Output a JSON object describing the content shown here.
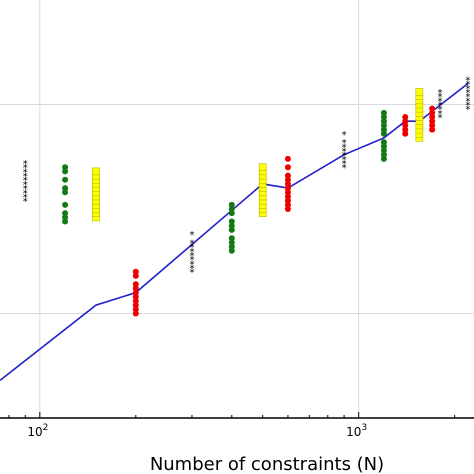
{
  "chart_data": {
    "type": "scatter",
    "title": "",
    "xlabel": "Number of constraints (N)",
    "ylabel": "",
    "x_scale": "log",
    "xlim": [
      75,
      2300
    ],
    "ylim": [
      0,
      1
    ],
    "y_normalized_view": true,
    "grid": true,
    "x_tick_labels": [
      {
        "value": 100,
        "label": "10",
        "exp": "2"
      },
      {
        "value": 1000,
        "label": "10",
        "exp": "3"
      }
    ],
    "series": [
      {
        "marker": "star",
        "color": "#000000",
        "points": [
          {
            "x": 90,
            "y": [
              0.52,
              0.53,
              0.54,
              0.55,
              0.56,
              0.57,
              0.58,
              0.59,
              0.6,
              0.61
            ]
          },
          {
            "x": 300,
            "y": [
              0.35,
              0.36,
              0.37,
              0.38,
              0.39,
              0.4,
              0.41,
              0.42,
              0.44
            ]
          },
          {
            "x": 900,
            "y": [
              0.6,
              0.61,
              0.62,
              0.63,
              0.64,
              0.65,
              0.66,
              0.68
            ]
          },
          {
            "x": 1800,
            "y": [
              0.72,
              0.73,
              0.74,
              0.75,
              0.76,
              0.77,
              0.78
            ]
          },
          {
            "x": 2200,
            "y": [
              0.74,
              0.75,
              0.76,
              0.77,
              0.78,
              0.79,
              0.8,
              0.81
            ]
          }
        ]
      },
      {
        "marker": "circle",
        "color": "#147814",
        "points": [
          {
            "x": 120,
            "y": [
              0.47,
              0.48,
              0.49,
              0.51,
              0.54,
              0.55,
              0.57,
              0.59,
              0.6
            ]
          },
          {
            "x": 400,
            "y": [
              0.4,
              0.41,
              0.42,
              0.43,
              0.45,
              0.46,
              0.47,
              0.49,
              0.5,
              0.51
            ]
          },
          {
            "x": 1200,
            "y": [
              0.62,
              0.63,
              0.64,
              0.65,
              0.66,
              0.68,
              0.69,
              0.7,
              0.71,
              0.72,
              0.73
            ]
          }
        ]
      },
      {
        "marker": "square",
        "color": "#ffff00",
        "points": [
          {
            "x": 150,
            "y": [
              0.48,
              0.49,
              0.5,
              0.51,
              0.52,
              0.53,
              0.54,
              0.55,
              0.56,
              0.57,
              0.58,
              0.59
            ]
          },
          {
            "x": 500,
            "y": [
              0.49,
              0.5,
              0.51,
              0.52,
              0.53,
              0.54,
              0.55,
              0.56,
              0.57,
              0.58,
              0.59,
              0.6
            ]
          },
          {
            "x": 1550,
            "y": [
              0.67,
              0.68,
              0.69,
              0.7,
              0.71,
              0.72,
              0.73,
              0.74,
              0.75,
              0.76,
              0.77,
              0.78
            ]
          }
        ]
      },
      {
        "marker": "circle",
        "color": "#ee0000",
        "points": [
          {
            "x": 200,
            "y": [
              0.25,
              0.26,
              0.27,
              0.28,
              0.29,
              0.3,
              0.31,
              0.32,
              0.34,
              0.35
            ]
          },
          {
            "x": 600,
            "y": [
              0.5,
              0.51,
              0.52,
              0.53,
              0.54,
              0.55,
              0.56,
              0.57,
              0.58,
              0.6,
              0.62
            ]
          },
          {
            "x": 1400,
            "y": [
              0.68,
              0.69,
              0.7,
              0.71,
              0.72
            ]
          },
          {
            "x": 1700,
            "y": [
              0.69,
              0.7,
              0.71,
              0.72,
              0.73,
              0.74
            ]
          }
        ]
      }
    ],
    "line": {
      "color": "#1f1fcc",
      "points": [
        {
          "x": 75,
          "y": 0.09
        },
        {
          "x": 150,
          "y": 0.27
        },
        {
          "x": 200,
          "y": 0.3
        },
        {
          "x": 500,
          "y": 0.56
        },
        {
          "x": 600,
          "y": 0.55
        },
        {
          "x": 900,
          "y": 0.63
        },
        {
          "x": 1200,
          "y": 0.67
        },
        {
          "x": 1400,
          "y": 0.71
        },
        {
          "x": 1550,
          "y": 0.71
        },
        {
          "x": 2200,
          "y": 0.8
        }
      ]
    }
  }
}
